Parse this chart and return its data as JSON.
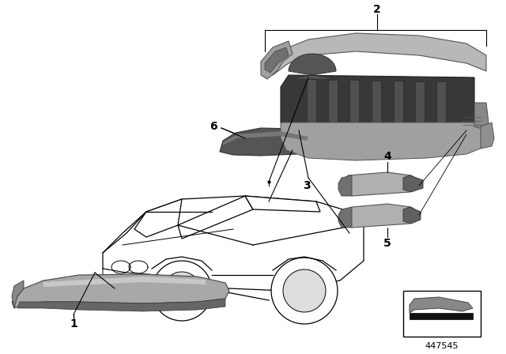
{
  "background_color": "#ffffff",
  "part_number": "447545",
  "line_color": "#000000",
  "car_color": "#ffffff",
  "car_edge": "#000000",
  "part_fill": "#aaaaaa",
  "part_dark": "#555555",
  "label_fontsize": 10,
  "label_fontweight": "bold"
}
